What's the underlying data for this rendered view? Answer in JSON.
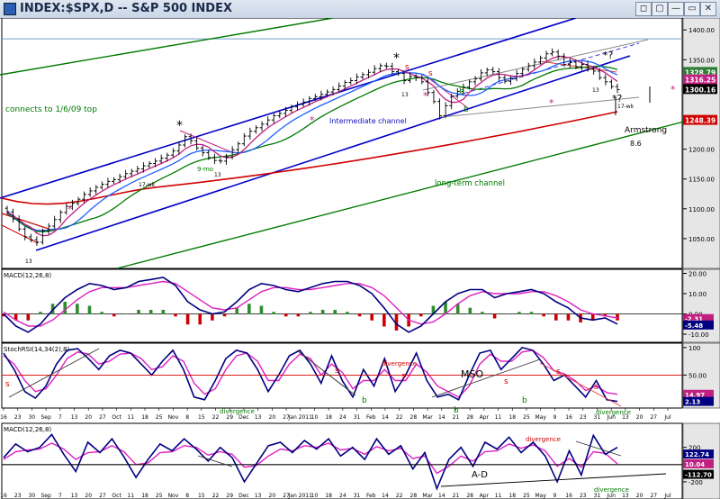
{
  "window": {
    "title": "INDEX:$SPX,D -- S&P 500 INDEX",
    "buttons": [
      "◻",
      "▢",
      "—",
      "▭",
      "✕"
    ]
  },
  "chart_data": [
    {
      "type": "candlestick",
      "title": "INDEX:$SPX,D -- S&P 500 INDEX",
      "ylim": [
        1000,
        1420
      ],
      "y_ticks": [
        1050,
        1100,
        1150,
        1200,
        1250,
        1300,
        1350,
        1400
      ],
      "price_labels": [
        {
          "text": "1328.79",
          "color": "#2e7d32",
          "y": 1328.79
        },
        {
          "text": "1316.25",
          "color": "#c02080",
          "y": 1316.25
        },
        {
          "text": "1300.16",
          "color": "#000000",
          "y": 1300.16
        },
        {
          "text": "1248.39",
          "color": "#d00000",
          "y": 1248.39
        }
      ],
      "closes": [
        1095,
        1083,
        1066,
        1053,
        1048,
        1044,
        1063,
        1071,
        1082,
        1094,
        1104,
        1109,
        1116,
        1124,
        1130,
        1136,
        1141,
        1146,
        1149,
        1154,
        1159,
        1163,
        1167,
        1172,
        1176,
        1180,
        1185,
        1190,
        1197,
        1207,
        1221,
        1214,
        1202,
        1194,
        1186,
        1181,
        1180,
        1187,
        1199,
        1209,
        1222,
        1230,
        1236,
        1242,
        1249,
        1256,
        1260,
        1265,
        1271,
        1275,
        1279,
        1285,
        1288,
        1292,
        1296,
        1300,
        1306,
        1312,
        1315,
        1321,
        1325,
        1329,
        1335,
        1340,
        1339,
        1330,
        1327,
        1315,
        1322,
        1320,
        1313,
        1295,
        1280,
        1256,
        1273,
        1289,
        1297,
        1304,
        1313,
        1318,
        1328,
        1333,
        1330,
        1320,
        1314,
        1318,
        1327,
        1334,
        1340,
        1346,
        1353,
        1360,
        1363,
        1356,
        1342,
        1346,
        1338,
        1342,
        1334,
        1331,
        1320,
        1313,
        1305,
        1300
      ],
      "channels": [
        {
          "name": "Intermediate channel",
          "color": "#0000c8"
        },
        {
          "name": "long-term channel",
          "color": "#007a00"
        }
      ],
      "moving_averages": [
        "17-wk",
        "9-mo"
      ],
      "annotations": [
        {
          "text": "connects to 1/6/09 top",
          "color": "#007a00"
        },
        {
          "text": "Intermediate channel",
          "color": "#1010c0"
        },
        {
          "text": "long-term channel",
          "color": "#007a00"
        },
        {
          "text": "Armstrong",
          "color": "#000000"
        },
        {
          "text": "8.6",
          "color": "#000000"
        },
        {
          "text": "17-wk",
          "color": "#000000"
        },
        {
          "text": "9-mo",
          "color": "#007a00"
        },
        {
          "text": "13",
          "color": "#000000"
        },
        {
          "text": "*",
          "color": "#000000"
        },
        {
          "text": "*?",
          "color": "#000000"
        },
        {
          "text": "*",
          "color": "#c02080"
        },
        {
          "text": "s",
          "color": "#d00000"
        },
        {
          "text": "b",
          "color": "#007a00"
        }
      ]
    },
    {
      "type": "macd",
      "label": "MACD(12,26,8)",
      "ylim": [
        -14,
        22
      ],
      "y_ticks": [
        -10.0,
        0.0,
        10.0,
        20.0
      ],
      "value_labels": [
        {
          "text": "-2.31",
          "color": "#c02080",
          "y": -2.31
        },
        {
          "text": "-5.48",
          "color": "#000080",
          "y": -5.48
        }
      ],
      "macd": [
        0,
        -6,
        -9,
        -5,
        2,
        8,
        12,
        15,
        14,
        12,
        13,
        16,
        17,
        18,
        14,
        6,
        2,
        0,
        1,
        6,
        12,
        15,
        14,
        12,
        11,
        13,
        15,
        16,
        16,
        14,
        10,
        3,
        -5,
        -9,
        -6,
        0,
        6,
        10,
        12,
        12,
        8,
        10,
        11,
        12,
        10,
        6,
        3,
        -2,
        -3,
        -2,
        -5
      ],
      "signal": [
        1,
        -3,
        -6,
        -6,
        -3,
        2,
        7,
        11,
        13,
        13,
        13,
        14,
        15,
        16,
        15,
        11,
        7,
        3,
        2,
        3,
        7,
        11,
        13,
        13,
        12,
        12,
        13,
        14,
        15,
        15,
        13,
        9,
        3,
        -3,
        -5,
        -4,
        0,
        5,
        9,
        11,
        10,
        10,
        10,
        11,
        11,
        9,
        6,
        2,
        0,
        -1,
        -2
      ]
    },
    {
      "type": "line",
      "label": "StochRSI(14,34(2),8)",
      "ylim": [
        -10,
        108
      ],
      "y_ticks": [
        0.0,
        50.0,
        100.0
      ],
      "value_labels": [
        {
          "text": "14.97",
          "color": "#c02080",
          "y": 14.97
        },
        {
          "text": "2.13",
          "color": "#000080",
          "y": 2.13
        }
      ],
      "x_tick_labels": [
        "16",
        "23",
        "30",
        "Sep",
        "7",
        "13",
        "20",
        "27",
        "Oct",
        "11",
        "18",
        "25",
        "Nov",
        "8",
        "15",
        "22",
        "29",
        "Dec",
        "13",
        "20",
        "27",
        "Jan 2011",
        "10",
        "18",
        "24",
        "31",
        "Feb",
        "14",
        "22",
        "28",
        "Mar",
        "14",
        "21",
        "28",
        "Apr",
        "11",
        "18",
        "25",
        "May",
        "9",
        "16",
        "23",
        "31",
        "Jun",
        "13",
        "20",
        "27",
        "Jul"
      ],
      "stoch": [
        90,
        60,
        20,
        8,
        30,
        70,
        95,
        98,
        80,
        60,
        85,
        95,
        90,
        70,
        50,
        75,
        95,
        60,
        10,
        5,
        40,
        80,
        95,
        90,
        60,
        20,
        50,
        85,
        95,
        70,
        35,
        85,
        40,
        10,
        60,
        30,
        80,
        20,
        50,
        90,
        40,
        10,
        15,
        5,
        50,
        90,
        95,
        60,
        80,
        100,
        95,
        70,
        40,
        50,
        30,
        10,
        40,
        5,
        2
      ],
      "signal": [
        85,
        70,
        40,
        20,
        25,
        50,
        80,
        92,
        88,
        70,
        75,
        88,
        90,
        80,
        60,
        65,
        85,
        75,
        35,
        15,
        25,
        60,
        85,
        90,
        75,
        40,
        40,
        70,
        88,
        80,
        50,
        70,
        55,
        25,
        40,
        40,
        60,
        40,
        40,
        70,
        55,
        30,
        20,
        10,
        30,
        70,
        88,
        75,
        75,
        92,
        95,
        82,
        58,
        52,
        40,
        22,
        30,
        18,
        15
      ],
      "annotations": [
        {
          "text": "divergence",
          "color": "#d00000"
        },
        {
          "text": "divergence",
          "color": "#007a00"
        },
        {
          "text": "divergence",
          "color": "#007a00"
        },
        {
          "text": "MSO",
          "color": "#000000"
        },
        {
          "text": "s",
          "color": "#d00000"
        },
        {
          "text": "b",
          "color": "#007a00"
        },
        {
          "text": "b",
          "color": "#007a00"
        },
        {
          "text": "b",
          "color": "#007a00"
        },
        {
          "text": "s",
          "color": "#d00000"
        },
        {
          "text": "s",
          "color": "#d00000"
        },
        {
          "text": "s",
          "color": "#d00000"
        },
        {
          "text": "s",
          "color": "#d00000"
        },
        {
          "text": "s",
          "color": "#d00000"
        }
      ]
    },
    {
      "type": "macd",
      "label": "MACD(12,26,8)",
      "ylim": [
        -400,
        480
      ],
      "y_ticks": [
        -200,
        200
      ],
      "value_labels": [
        {
          "text": "10.04",
          "color": "#c02080",
          "y": 10.04
        },
        {
          "text": "122.74",
          "color": "#000080",
          "y": 122.74
        },
        {
          "text": "-112.70",
          "color": "#000000",
          "y": -112.7
        }
      ],
      "line": [
        80,
        240,
        150,
        200,
        350,
        120,
        -80,
        260,
        140,
        300,
        90,
        -150,
        60,
        240,
        160,
        300,
        180,
        40,
        200,
        80,
        -200,
        10,
        220,
        260,
        140,
        280,
        180,
        300,
        100,
        200,
        60,
        300,
        120,
        220,
        -50,
        140,
        -280,
        60,
        200,
        -20,
        260,
        180,
        320,
        140,
        260,
        100,
        -200,
        160,
        -120,
        340,
        120,
        200
      ],
      "signal": [
        60,
        150,
        170,
        180,
        250,
        180,
        60,
        140,
        150,
        220,
        150,
        0,
        20,
        140,
        150,
        220,
        200,
        110,
        150,
        120,
        -30,
        -10,
        100,
        180,
        160,
        220,
        200,
        250,
        170,
        190,
        120,
        210,
        160,
        190,
        70,
        100,
        -100,
        -20,
        100,
        40,
        150,
        160,
        240,
        190,
        230,
        160,
        -20,
        70,
        -30,
        150,
        130,
        10
      ],
      "annotations": [
        {
          "text": "A-D",
          "color": "#000000"
        },
        {
          "text": "divergence",
          "color": "#d00000"
        },
        {
          "text": "divergence",
          "color": "#007a00"
        }
      ]
    }
  ]
}
